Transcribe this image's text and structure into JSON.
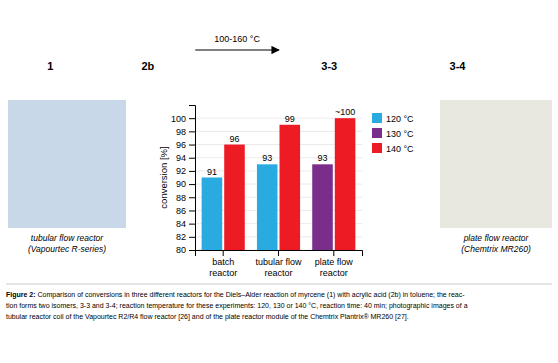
{
  "chart_data": {
    "type": "bar",
    "categories": [
      "batch\nreactor",
      "tubular flow\nreactor",
      "plate flow\nreactor"
    ],
    "series": [
      {
        "name": "120 °C",
        "color": "#29ABE2",
        "values": [
          91,
          93,
          null
        ],
        "value_labels": [
          "91",
          "93",
          null
        ]
      },
      {
        "name": "130 °C",
        "color": "#7B2D8B",
        "values": [
          null,
          null,
          93
        ],
        "value_labels": [
          null,
          null,
          "93"
        ]
      },
      {
        "name": "140 °C",
        "color": "#ED1C24",
        "values": [
          96,
          99,
          100
        ],
        "value_labels": [
          "96",
          "99",
          "~100"
        ]
      }
    ],
    "y_label": "conversion [%]",
    "ylim": [
      80,
      102
    ],
    "yticks": [
      80,
      82,
      84,
      86,
      88,
      90,
      92,
      94,
      96,
      98,
      100
    ],
    "grid": true,
    "legend": "right",
    "data_labels": true,
    "annotations": [
      "1",
      "2b",
      "3-3",
      "3-4",
      "100-160 °C",
      "tubular flow reactor",
      "(Vapourtec R-series)",
      "plate flow reactor",
      "(Chemtrix MR260)",
      "Figure 2:",
      " Comparison of conversions in three different reactors for the Diels–Alder reaction of myrcene (1) with acrylic acid (2b) in toluene; the reac-\ntion forms two isomers, 3-3 and 3-4; reaction temperature for these experiments: 120, 130 or 140 °C, reaction time: 40 min; photographic images of a\ntubular reactor coil of the Vapourtec R2/R4 flow reactor [26] and of the plate reactor module of the Chemtrix Plantrix® MR260 [27]."
    ]
  }
}
